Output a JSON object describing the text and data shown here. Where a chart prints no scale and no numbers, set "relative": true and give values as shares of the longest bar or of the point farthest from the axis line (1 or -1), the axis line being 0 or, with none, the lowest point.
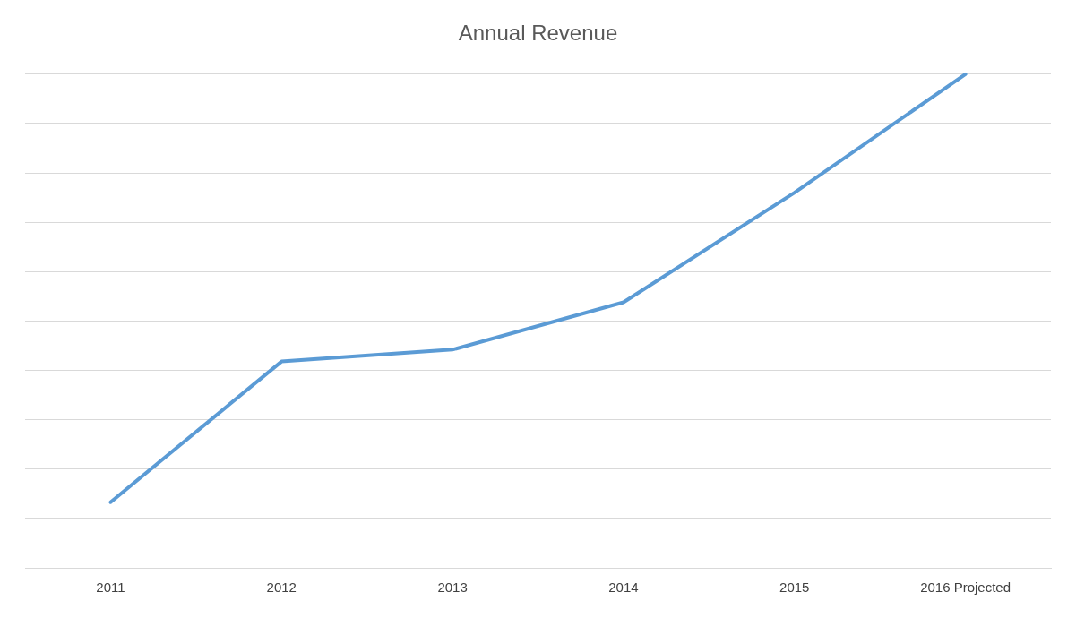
{
  "chart_data": {
    "type": "line",
    "title": "Annual Revenue",
    "categories": [
      "2011",
      "2012",
      "2013",
      "2014",
      "2015",
      "2016 Projected"
    ],
    "series": [
      {
        "color": "#5b9bd5",
        "values": [
          0.133,
          0.418,
          0.442,
          0.538,
          0.76,
          1
        ]
      }
    ],
    "relative": true,
    "grid": "y",
    "legend": false,
    "marker": "none",
    "line_style": "solid"
  }
}
